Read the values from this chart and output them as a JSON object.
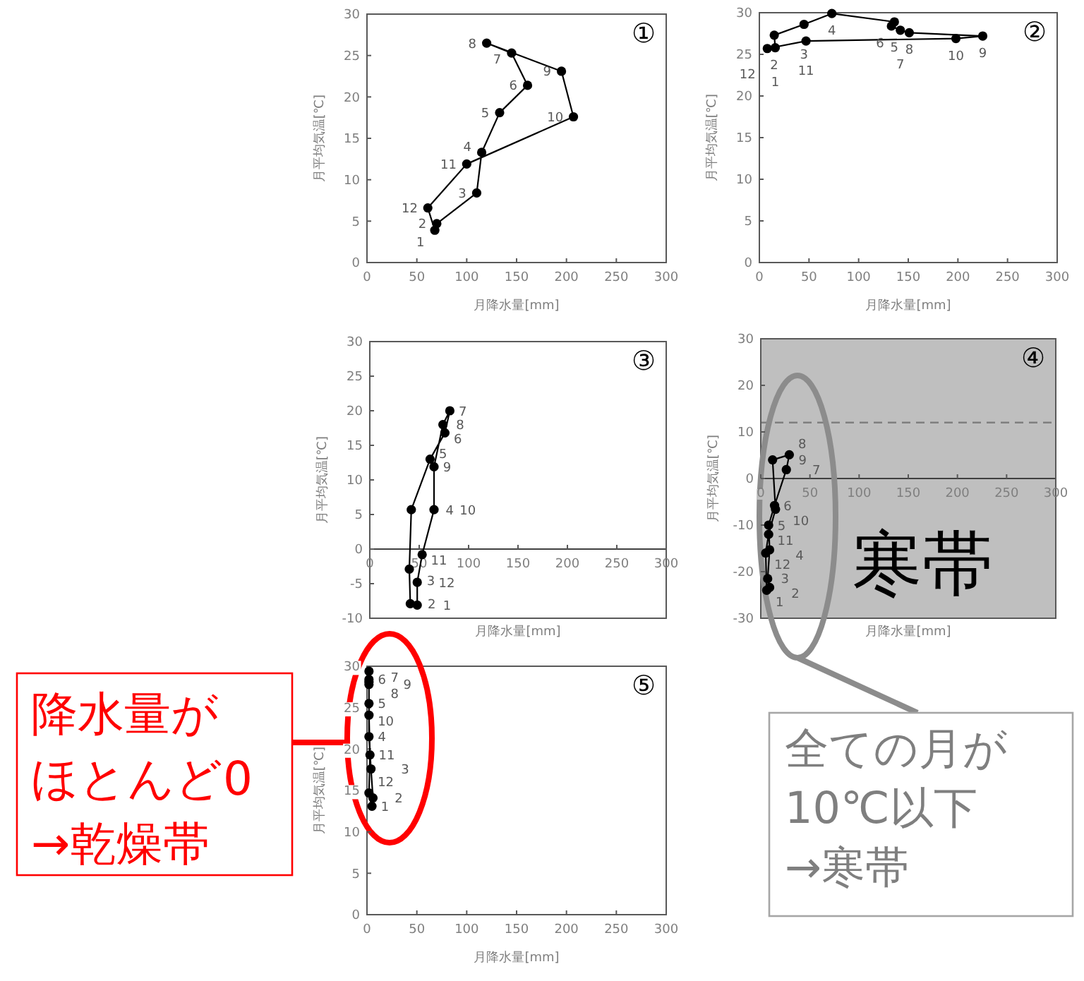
{
  "chart_data": [
    {
      "type": "line",
      "title": "①",
      "xlabel": "月降水量[mm]",
      "ylabel": "月平均気温[℃]",
      "xlim": [
        0,
        300
      ],
      "xticks": [
        0,
        50,
        100,
        150,
        200,
        250,
        300
      ],
      "ylim": [
        0,
        30
      ],
      "yticks": [
        0,
        5,
        10,
        15,
        20,
        25,
        30
      ],
      "marker": "circle",
      "series": [
        {
          "color": "#000000",
          "x": [
            68,
            70,
            110,
            115,
            133,
            161,
            145,
            120,
            195,
            207,
            100,
            61
          ],
          "values": [
            3.9,
            4.7,
            8.4,
            13.3,
            18.1,
            21.4,
            25.3,
            26.5,
            23.1,
            17.6,
            11.9,
            6.6
          ]
        }
      ],
      "annotations": [
        {
          "text": "1",
          "x": 68,
          "y": 3.9
        },
        {
          "text": "2",
          "x": 70,
          "y": 4.7
        },
        {
          "text": "3",
          "x": 110,
          "y": 8.4
        },
        {
          "text": "4",
          "x": 115,
          "y": 13.3
        },
        {
          "text": "5",
          "x": 133,
          "y": 18.1
        },
        {
          "text": "6",
          "x": 161,
          "y": 21.4
        },
        {
          "text": "7",
          "x": 145,
          "y": 25.3
        },
        {
          "text": "8",
          "x": 120,
          "y": 26.5
        },
        {
          "text": "9",
          "x": 195,
          "y": 23.1
        },
        {
          "text": "10",
          "x": 207,
          "y": 17.6
        },
        {
          "text": "11",
          "x": 100,
          "y": 11.9
        },
        {
          "text": "12",
          "x": 61,
          "y": 6.6
        }
      ]
    },
    {
      "type": "line",
      "title": "②",
      "xlabel": "月降水量[mm]",
      "ylabel": "月平均気温[℃]",
      "xlim": [
        0,
        300
      ],
      "xticks": [
        0,
        50,
        100,
        150,
        200,
        250,
        300
      ],
      "ylim": [
        0,
        30
      ],
      "yticks": [
        0,
        5,
        10,
        15,
        20,
        25,
        30
      ],
      "marker": "circle",
      "series": [
        {
          "color": "#000000",
          "x": [
            16,
            15,
            45,
            73,
            136,
            133,
            142,
            151,
            225,
            198,
            47,
            8
          ],
          "values": [
            25.8,
            27.3,
            28.6,
            29.9,
            28.9,
            28.4,
            27.9,
            27.6,
            27.2,
            26.9,
            26.6,
            25.7
          ]
        }
      ],
      "annotations": [
        {
          "text": "1",
          "x": 16,
          "y": 25.8
        },
        {
          "text": "2",
          "x": 15,
          "y": 27.3
        },
        {
          "text": "3",
          "x": 45,
          "y": 28.6
        },
        {
          "text": "4",
          "x": 73,
          "y": 29.9
        },
        {
          "text": "5",
          "x": 136,
          "y": 28.9
        },
        {
          "text": "6",
          "x": 133,
          "y": 28.4
        },
        {
          "text": "7",
          "x": 142,
          "y": 27.9
        },
        {
          "text": "8",
          "x": 151,
          "y": 27.6
        },
        {
          "text": "9",
          "x": 225,
          "y": 27.2
        },
        {
          "text": "10",
          "x": 198,
          "y": 26.9
        },
        {
          "text": "11",
          "x": 47,
          "y": 26.6
        },
        {
          "text": "12",
          "x": 8,
          "y": 25.7
        }
      ]
    },
    {
      "type": "line",
      "title": "③",
      "xlabel": "月降水量[mm]",
      "ylabel": "月平均気温[℃]",
      "xlim": [
        0,
        300
      ],
      "xticks": [
        0,
        50,
        100,
        150,
        200,
        250,
        300
      ],
      "ylim": [
        -10,
        30
      ],
      "yticks": [
        -10,
        -5,
        0,
        5,
        10,
        15,
        20,
        25,
        30
      ],
      "marker": "circle",
      "series": [
        {
          "color": "#000000",
          "x": [
            48,
            41,
            40,
            42,
            61,
            76,
            81,
            74,
            65,
            65,
            53,
            48
          ],
          "values": [
            -8.1,
            -7.9,
            -2.9,
            5.7,
            13,
            16.8,
            20,
            18,
            11.9,
            5.7,
            -0.8,
            -4.8
          ]
        }
      ],
      "annotations": [
        {
          "text": "1",
          "x": 48,
          "y": -8.1
        },
        {
          "text": "2",
          "x": 41,
          "y": -7.9
        },
        {
          "text": "3",
          "x": 40,
          "y": -2.9
        },
        {
          "text": "4",
          "x": 42,
          "y": 5.7
        },
        {
          "text": "5",
          "x": 61,
          "y": 13
        },
        {
          "text": "6",
          "x": 76,
          "y": 16.8
        },
        {
          "text": "7",
          "x": 81,
          "y": 20
        },
        {
          "text": "8",
          "x": 74,
          "y": 18
        },
        {
          "text": "9",
          "x": 65,
          "y": 11.9
        },
        {
          "text": "10",
          "x": 65,
          "y": 5.7
        },
        {
          "text": "11",
          "x": 53,
          "y": -0.8
        },
        {
          "text": "12",
          "x": 48,
          "y": -4.8
        }
      ]
    },
    {
      "type": "line",
      "title": "④",
      "xlabel": "月降水量[mm]",
      "ylabel": "月平均気温[℃]",
      "xlim": [
        0,
        300
      ],
      "xticks": [
        0,
        50,
        100,
        150,
        200,
        250,
        300
      ],
      "ylim": [
        -30,
        30
      ],
      "yticks": [
        -30,
        -20,
        -10,
        0,
        10,
        20,
        30
      ],
      "marker": "circle",
      "bands": [
        {
          "axis": "y",
          "from": -30,
          "to": 30,
          "label": "寒帯",
          "color": "#bfbfbf"
        }
      ],
      "ref_lines": [
        {
          "axis": "y",
          "value": 12,
          "color": "#7f7f7f",
          "line_style": "dashed"
        }
      ],
      "series": [
        {
          "color": "#000000",
          "x": [
            6,
            9,
            7,
            9,
            8,
            14,
            26,
            29,
            12,
            15,
            8,
            5
          ],
          "values": [
            -24,
            -23.4,
            -21.5,
            -15.3,
            -10,
            -5.8,
            1.9,
            5.1,
            4,
            -6.6,
            -12,
            -16
          ]
        }
      ],
      "annotations": [
        {
          "text": "1",
          "x": 6,
          "y": -24
        },
        {
          "text": "2",
          "x": 9,
          "y": -23.4
        },
        {
          "text": "3",
          "x": 7,
          "y": -21.5
        },
        {
          "text": "4",
          "x": 9,
          "y": -15.3
        },
        {
          "text": "5",
          "x": 8,
          "y": -10
        },
        {
          "text": "6",
          "x": 14,
          "y": -5.8
        },
        {
          "text": "7",
          "x": 26,
          "y": 1.9
        },
        {
          "text": "8",
          "x": 29,
          "y": 5.1
        },
        {
          "text": "9",
          "x": 12,
          "y": 4
        },
        {
          "text": "10",
          "x": 15,
          "y": -6.6
        },
        {
          "text": "11",
          "x": 8,
          "y": -12
        },
        {
          "text": "12",
          "x": 5,
          "y": -16
        },
        "全ての月が",
        "10℃以下",
        "→寒帯"
      ]
    },
    {
      "type": "line",
      "title": "⑤",
      "xlabel": "月降水量[mm]",
      "ylabel": "月平均気温[℃]",
      "xlim": [
        0,
        300
      ],
      "xticks": [
        0,
        50,
        100,
        150,
        200,
        250,
        300
      ],
      "ylim": [
        0,
        30
      ],
      "yticks": [
        0,
        5,
        10,
        15,
        20,
        25,
        30
      ],
      "marker": "circle",
      "series": [
        {
          "color": "#000000",
          "x": [
            5,
            6,
            4,
            2,
            2,
            2,
            2,
            2,
            2,
            2,
            3,
            2
          ],
          "values": [
            13.1,
            14.1,
            17.6,
            21.5,
            25.5,
            28.4,
            29.4,
            28.1,
            27.8,
            24.1,
            19.3,
            14.7
          ]
        }
      ],
      "annotations": [
        {
          "text": "1",
          "x": 5,
          "y": 13.1
        },
        {
          "text": "2",
          "x": 6,
          "y": 14.1
        },
        {
          "text": "3",
          "x": 4,
          "y": 17.6
        },
        {
          "text": "4",
          "x": 2,
          "y": 21.5
        },
        {
          "text": "5",
          "x": 2,
          "y": 25.5
        },
        {
          "text": "6",
          "x": 2,
          "y": 28.4
        },
        {
          "text": "7",
          "x": 2,
          "y": 29.4
        },
        {
          "text": "8",
          "x": 2,
          "y": 28.1
        },
        {
          "text": "9",
          "x": 2,
          "y": 27.8
        },
        {
          "text": "10",
          "x": 2,
          "y": 24.1
        },
        {
          "text": "11",
          "x": 3,
          "y": 19.3
        },
        {
          "text": "12",
          "x": 2,
          "y": 14.7
        },
        "降水量が",
        "ほとんど0",
        "→乾燥帯"
      ]
    }
  ]
}
